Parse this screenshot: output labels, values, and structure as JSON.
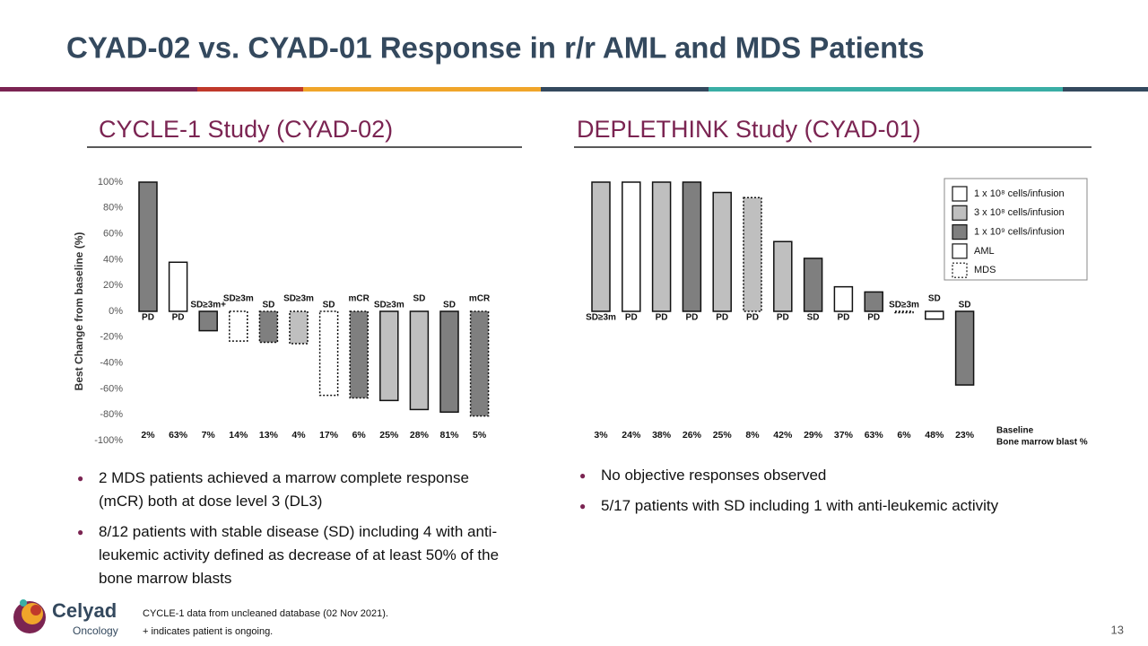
{
  "title": "CYAD-02 vs. CYAD-01 Response in r/r AML and MDS Patients",
  "chart_data": [
    {
      "type": "bar",
      "title": "CYCLE-1 Study (CYAD-02)",
      "ylabel": "Best Change from baseline (%)",
      "ylim": [
        -100,
        100
      ],
      "yticks": [
        {
          "value": 100,
          "label": "100%"
        },
        {
          "value": 80,
          "label": "80%"
        },
        {
          "value": 60,
          "label": "60%"
        },
        {
          "value": 40,
          "label": "40%"
        },
        {
          "value": 20,
          "label": "20%"
        },
        {
          "value": 0,
          "label": "0%"
        },
        {
          "value": -20,
          "label": "-20%"
        },
        {
          "value": -40,
          "label": "-40%"
        },
        {
          "value": -60,
          "label": "-60%"
        },
        {
          "value": -80,
          "label": "-80%"
        },
        {
          "value": -100,
          "label": "-100%"
        }
      ],
      "categories": [
        "PD",
        "PD",
        "SD≥3m+",
        "SD≥3m",
        "SD",
        "SD≥3m",
        "SD",
        "mCR",
        "SD≥3m",
        "SD",
        "SD",
        "mCR"
      ],
      "values": [
        100,
        38,
        -15,
        -23,
        -24,
        -25,
        -65,
        -67,
        -69,
        -76,
        -78,
        -81
      ],
      "colors": [
        "#7f7f7f",
        "#ffffff",
        "#7f7f7f",
        "#ffffff",
        "#7f7f7f",
        "#bfbfbf",
        "#ffffff",
        "#7f7f7f",
        "#bfbfbf",
        "#bfbfbf",
        "#7f7f7f",
        "#7f7f7f"
      ],
      "dotted": [
        false,
        false,
        false,
        true,
        true,
        true,
        true,
        true,
        false,
        false,
        false,
        true
      ],
      "blast_labels": [
        "2%",
        "63%",
        "7%",
        "14%",
        "13%",
        "4%",
        "17%",
        "6%",
        "25%",
        "28%",
        "81%",
        "5%"
      ]
    },
    {
      "type": "bar",
      "title": "DEPLETHINK Study (CYAD-01)",
      "ylim": [
        -100,
        100
      ],
      "categories": [
        "SD≥3m",
        "PD",
        "PD",
        "PD",
        "PD",
        "PD",
        "PD",
        "SD",
        "PD",
        "PD",
        "SD≥3m",
        "SD",
        "SD"
      ],
      "values": [
        100,
        100,
        100,
        100,
        92,
        88,
        54,
        41,
        19,
        15,
        -1,
        -6,
        -57
      ],
      "colors": [
        "#bfbfbf",
        "#ffffff",
        "#bfbfbf",
        "#7f7f7f",
        "#bfbfbf",
        "#bfbfbf",
        "#bfbfbf",
        "#7f7f7f",
        "#ffffff",
        "#7f7f7f",
        "#ffffff",
        "#ffffff",
        "#7f7f7f"
      ],
      "dotted": [
        false,
        false,
        false,
        false,
        false,
        true,
        false,
        false,
        false,
        false,
        true,
        false,
        false
      ],
      "blast_labels": [
        "3%",
        "24%",
        "38%",
        "26%",
        "25%",
        "8%",
        "42%",
        "29%",
        "37%",
        "63%",
        "6%",
        "48%",
        "23%"
      ],
      "blast_caption": [
        "Baseline",
        "Bone marrow blast %"
      ],
      "legend": [
        {
          "label": "1 x 10⁸ cells/infusion",
          "color": "#ffffff",
          "dotted": false
        },
        {
          "label": "3 x 10⁸ cells/infusion",
          "color": "#bfbfbf",
          "dotted": false
        },
        {
          "label": "1 x 10⁹ cells/infusion",
          "color": "#7f7f7f",
          "dotted": false
        },
        {
          "label": "AML",
          "color": "#ffffff",
          "dotted": false
        },
        {
          "label": "MDS",
          "color": "#ffffff",
          "dotted": true
        }
      ]
    }
  ],
  "left_bullets": [
    "2 MDS patients achieved a marrow complete response (mCR) both at dose level 3 (DL3)",
    "8/12 patients with stable disease (SD) including 4 with anti-leukemic activity defined as decrease of at least 50% of the bone marrow blasts"
  ],
  "right_bullets": [
    "No objective responses observed",
    "5/17 patients with SD including 1 with anti-leukemic activity"
  ],
  "footnotes": [
    "CYCLE-1 data from uncleaned database (02 Nov 2021).",
    "+ indicates patient is ongoing."
  ],
  "logo": {
    "name": "Celyad",
    "tagline": "Oncology"
  },
  "page_number": "13"
}
